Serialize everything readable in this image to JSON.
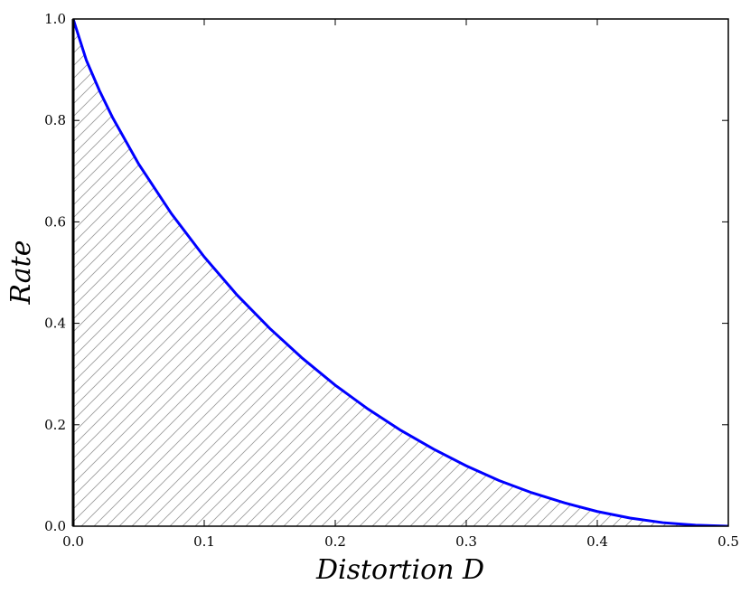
{
  "chart_data": {
    "type": "area",
    "xlabel": "Distortion D",
    "ylabel": "Rate",
    "xlim": [
      0.0,
      0.5
    ],
    "ylim": [
      0.0,
      1.0
    ],
    "x_ticks": [
      "0.0",
      "0.1",
      "0.2",
      "0.3",
      "0.4",
      "0.5"
    ],
    "y_ticks": [
      "0.0",
      "0.2",
      "0.4",
      "0.6",
      "0.8",
      "1.0"
    ],
    "grid": false,
    "fill": "hatched region under the curve",
    "line_color": "#0000ff",
    "hatch_color": "#999999",
    "series": [
      {
        "x": [
          0.0,
          0.01,
          0.02,
          0.03,
          0.05,
          0.075,
          0.1,
          0.125,
          0.15,
          0.175,
          0.2,
          0.225,
          0.25,
          0.275,
          0.3,
          0.325,
          0.35,
          0.375,
          0.4,
          0.425,
          0.45,
          0.475,
          0.5
        ],
        "y": [
          1.0,
          0.919,
          0.859,
          0.806,
          0.714,
          0.616,
          0.531,
          0.456,
          0.39,
          0.331,
          0.278,
          0.231,
          0.189,
          0.152,
          0.119,
          0.09,
          0.066,
          0.046,
          0.029,
          0.016,
          0.007,
          0.002,
          0.0
        ]
      }
    ]
  }
}
